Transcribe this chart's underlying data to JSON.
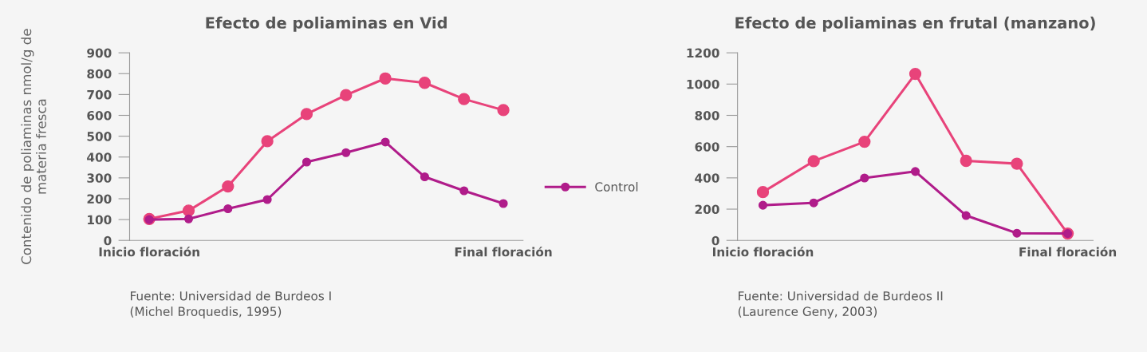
{
  "chart_data": [
    {
      "type": "line",
      "title": "Efecto de poliaminas en Vid",
      "ylabel": "Contenido de poliaminas nmol/g de\nmateria fresca",
      "categories": [
        "Inicio floración",
        null,
        null,
        null,
        null,
        null,
        null,
        null,
        null,
        "Final floración"
      ],
      "ylim": [
        0,
        900
      ],
      "yticks": [
        0,
        100,
        200,
        300,
        400,
        500,
        600,
        700,
        800,
        900
      ],
      "series": [
        {
          "color": "#e8437a",
          "values": [
            103,
            143,
            259,
            476,
            606,
            697,
            777,
            756,
            678,
            625
          ]
        },
        {
          "name": "Control",
          "color": "#b01c8a",
          "values": [
            100,
            103,
            152,
            196,
            376,
            421,
            472,
            305,
            238,
            177
          ]
        }
      ],
      "marker": "circle",
      "line_style": "solid",
      "grid": false,
      "legend": "right",
      "annotations": [
        "Fuente: Universidad de Burdeos I\n(Michel Broquedis, 1995)"
      ]
    },
    {
      "type": "line",
      "title": "Efecto de poliaminas en frutal (manzano)",
      "categories": [
        "Inicio floración",
        null,
        null,
        null,
        null,
        null,
        "Final floración"
      ],
      "ylim": [
        0,
        1200
      ],
      "yticks": [
        0,
        200,
        400,
        600,
        800,
        1000,
        1200
      ],
      "series": [
        {
          "color": "#e8437a",
          "values": [
            309,
            507,
            631,
            1065,
            509,
            491,
            44
          ]
        },
        {
          "color": "#b01c8a",
          "values": [
            225,
            240,
            399,
            441,
            159,
            46,
            44
          ]
        }
      ],
      "marker": "circle",
      "line_style": "solid",
      "grid": false,
      "annotations": [
        "Fuente: Universidad de Burdeos II\n(Laurence Geny, 2003)"
      ]
    }
  ]
}
